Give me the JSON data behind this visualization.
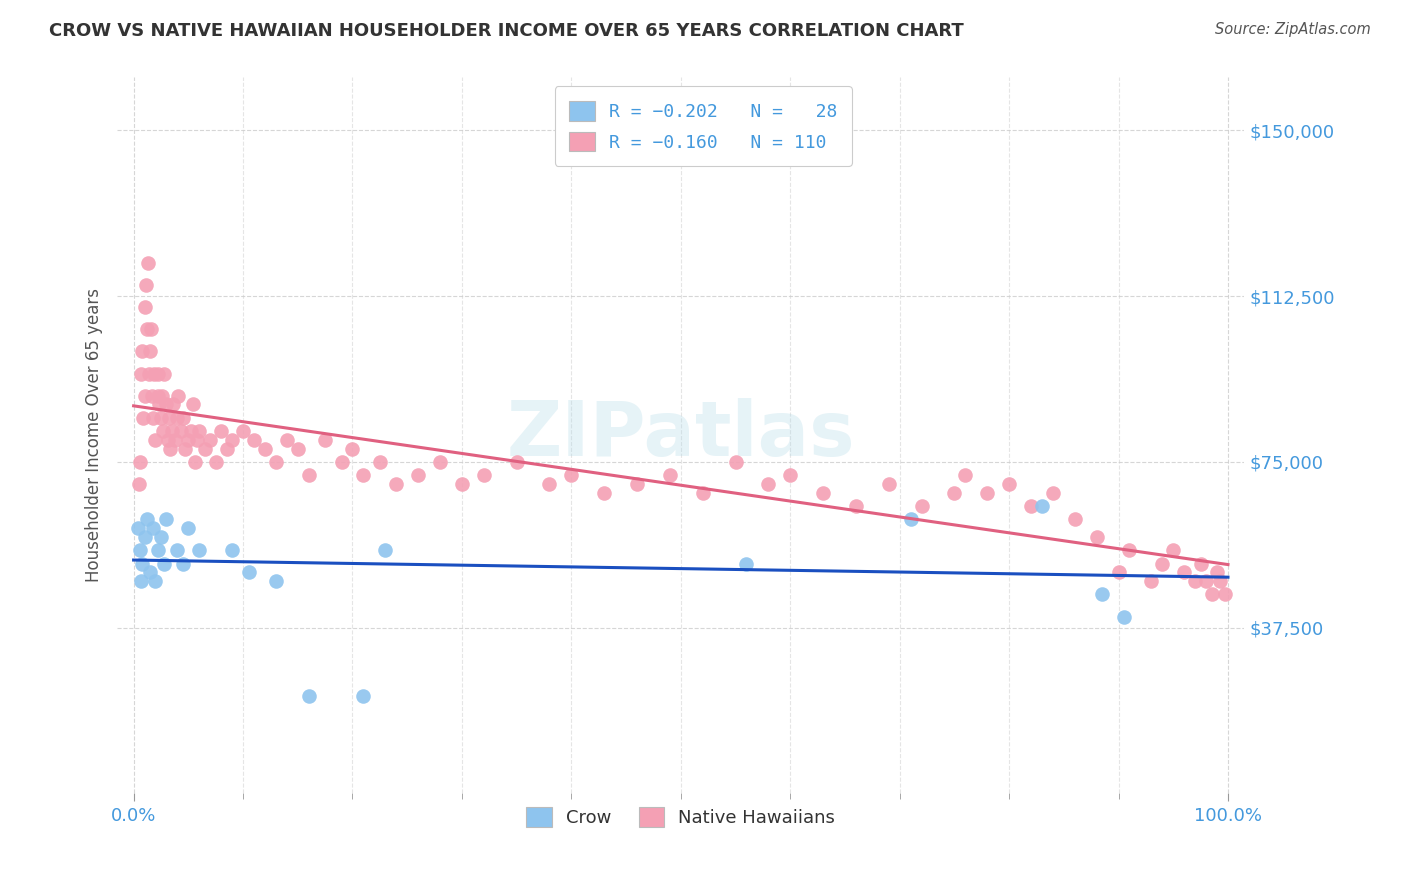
{
  "title": "CROW VS NATIVE HAWAIIAN HOUSEHOLDER INCOME OVER 65 YEARS CORRELATION CHART",
  "source": "Source: ZipAtlas.com",
  "ylabel": "Householder Income Over 65 years",
  "ytick_labels": [
    "$37,500",
    "$75,000",
    "$112,500",
    "$150,000"
  ],
  "ytick_values": [
    37500,
    75000,
    112500,
    150000
  ],
  "ymin": 0,
  "ymax": 162000,
  "xmin": 0.0,
  "xmax": 1.0,
  "color_crow": "#8EC4EE",
  "color_native": "#F4A0B4",
  "color_line_crow": "#1A4FC0",
  "color_line_native": "#E06080",
  "color_axis_labels": "#4499DD",
  "watermark": "ZIPatlas",
  "crow_x": [
    0.004,
    0.006,
    0.007,
    0.008,
    0.01,
    0.012,
    0.015,
    0.018,
    0.02,
    0.022,
    0.025,
    0.028,
    0.03,
    0.04,
    0.045,
    0.05,
    0.06,
    0.09,
    0.105,
    0.13,
    0.16,
    0.21,
    0.23,
    0.56,
    0.71,
    0.83,
    0.885,
    0.905
  ],
  "crow_y": [
    60000,
    55000,
    48000,
    52000,
    58000,
    62000,
    50000,
    60000,
    48000,
    55000,
    58000,
    52000,
    62000,
    55000,
    52000,
    60000,
    55000,
    55000,
    50000,
    48000,
    22000,
    22000,
    55000,
    52000,
    62000,
    65000,
    45000,
    40000
  ],
  "native_x": [
    0.005,
    0.006,
    0.007,
    0.008,
    0.009,
    0.01,
    0.01,
    0.011,
    0.012,
    0.013,
    0.014,
    0.015,
    0.016,
    0.017,
    0.018,
    0.019,
    0.02,
    0.022,
    0.022,
    0.023,
    0.025,
    0.026,
    0.027,
    0.028,
    0.03,
    0.031,
    0.032,
    0.033,
    0.035,
    0.036,
    0.038,
    0.04,
    0.041,
    0.043,
    0.045,
    0.047,
    0.05,
    0.052,
    0.054,
    0.056,
    0.058,
    0.06,
    0.065,
    0.07,
    0.075,
    0.08,
    0.085,
    0.09,
    0.1,
    0.11,
    0.12,
    0.13,
    0.14,
    0.15,
    0.16,
    0.175,
    0.19,
    0.2,
    0.21,
    0.225,
    0.24,
    0.26,
    0.28,
    0.3,
    0.32,
    0.35,
    0.38,
    0.4,
    0.43,
    0.46,
    0.49,
    0.52,
    0.55,
    0.58,
    0.6,
    0.63,
    0.66,
    0.69,
    0.72,
    0.75,
    0.76,
    0.78,
    0.8,
    0.82,
    0.84,
    0.86,
    0.88,
    0.9,
    0.91,
    0.93,
    0.94,
    0.95,
    0.96,
    0.97,
    0.975,
    0.98,
    0.985,
    0.99,
    0.993,
    0.997
  ],
  "native_y": [
    70000,
    75000,
    95000,
    100000,
    85000,
    110000,
    90000,
    115000,
    105000,
    120000,
    95000,
    100000,
    105000,
    90000,
    85000,
    95000,
    80000,
    90000,
    95000,
    88000,
    85000,
    90000,
    82000,
    95000,
    88000,
    80000,
    85000,
    78000,
    82000,
    88000,
    80000,
    85000,
    90000,
    82000,
    85000,
    78000,
    80000,
    82000,
    88000,
    75000,
    80000,
    82000,
    78000,
    80000,
    75000,
    82000,
    78000,
    80000,
    82000,
    80000,
    78000,
    75000,
    80000,
    78000,
    72000,
    80000,
    75000,
    78000,
    72000,
    75000,
    70000,
    72000,
    75000,
    70000,
    72000,
    75000,
    70000,
    72000,
    68000,
    70000,
    72000,
    68000,
    75000,
    70000,
    72000,
    68000,
    65000,
    70000,
    65000,
    68000,
    72000,
    68000,
    70000,
    65000,
    68000,
    62000,
    58000,
    50000,
    55000,
    48000,
    52000,
    55000,
    50000,
    48000,
    52000,
    48000,
    45000,
    50000,
    48000,
    45000
  ]
}
